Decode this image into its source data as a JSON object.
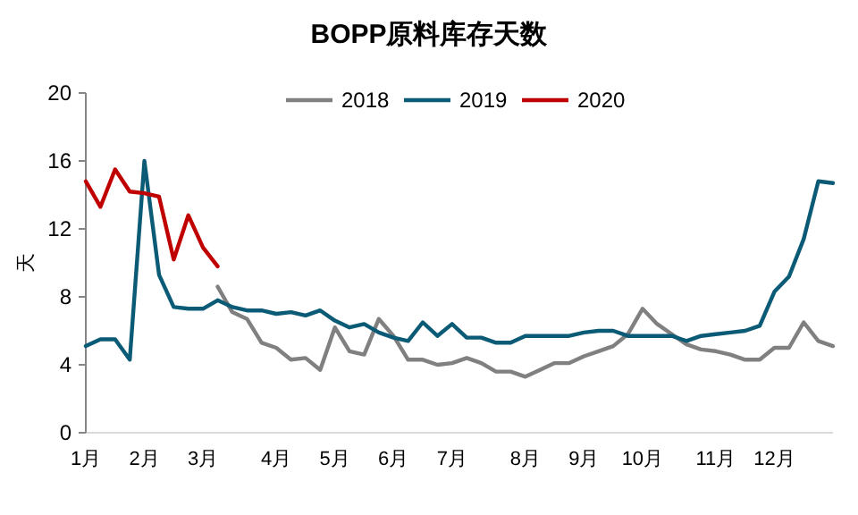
{
  "chart_data": {
    "type": "line",
    "title": "BOPP原料库存天数",
    "ylabel": "天",
    "categories": [
      "1月",
      null,
      null,
      null,
      "2月",
      null,
      null,
      null,
      "3月",
      null,
      null,
      null,
      null,
      "4月",
      null,
      null,
      null,
      "5月",
      null,
      null,
      null,
      "6月",
      null,
      null,
      null,
      "7月",
      null,
      null,
      null,
      null,
      "8月",
      null,
      null,
      null,
      "9月",
      null,
      null,
      null,
      "10月",
      null,
      null,
      null,
      null,
      "11月",
      null,
      null,
      null,
      "12月",
      null,
      null,
      null,
      null
    ],
    "series": [
      {
        "name": "2018",
        "color": "#808080",
        "values": [
          null,
          null,
          null,
          null,
          null,
          null,
          null,
          null,
          null,
          8.6,
          7.1,
          6.7,
          5.3,
          5.0,
          4.3,
          4.4,
          3.7,
          6.2,
          4.8,
          4.6,
          6.7,
          5.7,
          4.3,
          4.3,
          4.0,
          4.1,
          4.4,
          4.1,
          3.6,
          3.6,
          3.3,
          3.7,
          4.1,
          4.1,
          4.5,
          4.8,
          5.1,
          5.8,
          7.3,
          6.4,
          5.8,
          5.2,
          4.9,
          4.8,
          4.6,
          4.3,
          4.3,
          5.0,
          5.0,
          6.5,
          5.4,
          5.1
        ]
      },
      {
        "name": "2019",
        "color": "#0b5b76",
        "values": [
          5.1,
          5.5,
          5.5,
          4.3,
          16.0,
          9.3,
          7.4,
          7.3,
          7.3,
          7.8,
          7.4,
          7.2,
          7.2,
          7.0,
          7.1,
          6.9,
          7.2,
          6.6,
          6.2,
          6.4,
          5.9,
          5.6,
          5.4,
          6.5,
          5.7,
          6.4,
          5.6,
          5.6,
          5.3,
          5.3,
          5.7,
          5.7,
          5.7,
          5.7,
          5.9,
          6.0,
          6.0,
          5.7,
          5.7,
          5.7,
          5.7,
          5.4,
          5.7,
          5.8,
          5.9,
          6.0,
          6.3,
          8.3,
          9.2,
          11.4,
          14.8,
          14.7
        ]
      },
      {
        "name": "2020",
        "color": "#c00000",
        "values": [
          14.8,
          13.3,
          15.5,
          14.2,
          14.1,
          13.9,
          10.2,
          12.8,
          10.9,
          9.8,
          null,
          null,
          null,
          null,
          null,
          null,
          null,
          null,
          null,
          null,
          null,
          null,
          null,
          null,
          null,
          null,
          null,
          null,
          null,
          null,
          null,
          null,
          null,
          null,
          null,
          null,
          null,
          null,
          null,
          null,
          null,
          null,
          null,
          null,
          null,
          null,
          null,
          null,
          null,
          null,
          null,
          null
        ]
      }
    ],
    "ylim": [
      0,
      20
    ],
    "yticks": [
      0,
      4,
      8,
      12,
      16,
      20
    ],
    "legend": "top",
    "grid": false
  }
}
